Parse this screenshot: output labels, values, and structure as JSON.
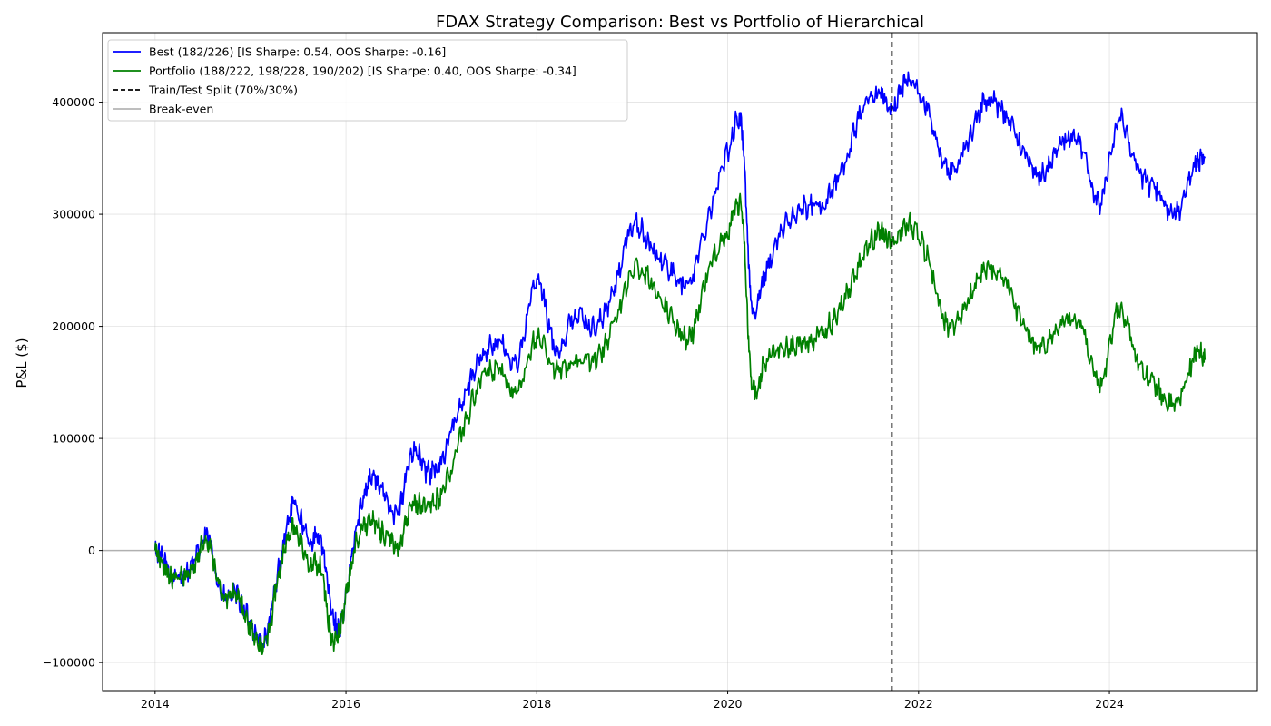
{
  "chart_data": {
    "type": "line",
    "title": "FDAX Strategy Comparison: Best vs Portfolio of Hierarchical",
    "xlabel": "",
    "ylabel": "P&L ($)",
    "xlim": [
      2013.45,
      2025.55
    ],
    "ylim": [
      -125000,
      462000
    ],
    "xticks": [
      2014,
      2016,
      2018,
      2020,
      2022,
      2024
    ],
    "yticks": [
      -100000,
      0,
      100000,
      200000,
      300000,
      400000
    ],
    "ytick_labels": [
      "−100000",
      "0",
      "100000",
      "200000",
      "300000",
      "400000"
    ],
    "grid": true,
    "legend_position": "top-left",
    "split_x": 2021.72,
    "breakeven_y": 0,
    "colors": {
      "best": "#0000ff",
      "portfolio": "#008000",
      "split": "#000000",
      "breakeven": "#a9a9a9"
    },
    "legend": [
      {
        "key": "best",
        "label": "Best (182/226) [IS Sharpe: 0.54, OOS Sharpe: -0.16]"
      },
      {
        "key": "portfolio",
        "label": "Portfolio (188/222, 198/228, 190/202) [IS Sharpe: 0.40, OOS Sharpe: -0.34]"
      },
      {
        "key": "split",
        "label": "Train/Test Split (70%/30%)"
      },
      {
        "key": "breakeven",
        "label": "Break-even"
      }
    ],
    "series": [
      {
        "key": "best",
        "name": "Best (182/226) [IS Sharpe: 0.54, OOS Sharpe: -0.16]",
        "points": [
          [
            2014.0,
            0
          ],
          [
            2014.1,
            -10000
          ],
          [
            2014.2,
            -25000
          ],
          [
            2014.4,
            -12000
          ],
          [
            2014.55,
            12000
          ],
          [
            2014.7,
            -40000
          ],
          [
            2014.85,
            -40000
          ],
          [
            2015.0,
            -65000
          ],
          [
            2015.15,
            -80000
          ],
          [
            2015.3,
            -15000
          ],
          [
            2015.45,
            40000
          ],
          [
            2015.6,
            10000
          ],
          [
            2015.75,
            5000
          ],
          [
            2015.85,
            -55000
          ],
          [
            2015.95,
            -65000
          ],
          [
            2016.1,
            15000
          ],
          [
            2016.25,
            65000
          ],
          [
            2016.4,
            50000
          ],
          [
            2016.55,
            35000
          ],
          [
            2016.7,
            90000
          ],
          [
            2016.85,
            70000
          ],
          [
            2017.0,
            80000
          ],
          [
            2017.2,
            130000
          ],
          [
            2017.4,
            170000
          ],
          [
            2017.6,
            185000
          ],
          [
            2017.8,
            170000
          ],
          [
            2018.0,
            240000
          ],
          [
            2018.2,
            180000
          ],
          [
            2018.4,
            210000
          ],
          [
            2018.6,
            200000
          ],
          [
            2018.8,
            230000
          ],
          [
            2019.0,
            290000
          ],
          [
            2019.2,
            270000
          ],
          [
            2019.4,
            250000
          ],
          [
            2019.6,
            240000
          ],
          [
            2019.8,
            300000
          ],
          [
            2020.0,
            355000
          ],
          [
            2020.15,
            375000
          ],
          [
            2020.25,
            220000
          ],
          [
            2020.4,
            250000
          ],
          [
            2020.6,
            290000
          ],
          [
            2020.8,
            305000
          ],
          [
            2021.0,
            310000
          ],
          [
            2021.2,
            340000
          ],
          [
            2021.4,
            390000
          ],
          [
            2021.6,
            405000
          ],
          [
            2021.72,
            395000
          ],
          [
            2021.9,
            420000
          ],
          [
            2022.1,
            390000
          ],
          [
            2022.3,
            340000
          ],
          [
            2022.5,
            360000
          ],
          [
            2022.7,
            400000
          ],
          [
            2022.9,
            390000
          ],
          [
            2023.1,
            355000
          ],
          [
            2023.3,
            335000
          ],
          [
            2023.5,
            365000
          ],
          [
            2023.7,
            360000
          ],
          [
            2023.9,
            310000
          ],
          [
            2024.1,
            385000
          ],
          [
            2024.3,
            340000
          ],
          [
            2024.5,
            320000
          ],
          [
            2024.7,
            300000
          ],
          [
            2024.9,
            345000
          ],
          [
            2025.0,
            350000
          ]
        ]
      },
      {
        "key": "portfolio",
        "name": "Portfolio (188/222, 198/228, 190/202) [IS Sharpe: 0.40, OOS Sharpe: -0.34]",
        "points": [
          [
            2014.0,
            0
          ],
          [
            2014.1,
            -15000
          ],
          [
            2014.2,
            -25000
          ],
          [
            2014.4,
            -15000
          ],
          [
            2014.55,
            10000
          ],
          [
            2014.7,
            -40000
          ],
          [
            2014.85,
            -40000
          ],
          [
            2015.0,
            -70000
          ],
          [
            2015.15,
            -85000
          ],
          [
            2015.3,
            -20000
          ],
          [
            2015.45,
            20000
          ],
          [
            2015.6,
            -10000
          ],
          [
            2015.75,
            -20000
          ],
          [
            2015.85,
            -80000
          ],
          [
            2015.95,
            -65000
          ],
          [
            2016.1,
            5000
          ],
          [
            2016.25,
            25000
          ],
          [
            2016.4,
            15000
          ],
          [
            2016.55,
            5000
          ],
          [
            2016.7,
            40000
          ],
          [
            2016.85,
            40000
          ],
          [
            2017.0,
            50000
          ],
          [
            2017.2,
            100000
          ],
          [
            2017.4,
            150000
          ],
          [
            2017.6,
            160000
          ],
          [
            2017.8,
            140000
          ],
          [
            2018.0,
            190000
          ],
          [
            2018.2,
            160000
          ],
          [
            2018.4,
            170000
          ],
          [
            2018.6,
            170000
          ],
          [
            2018.8,
            200000
          ],
          [
            2019.0,
            250000
          ],
          [
            2019.2,
            240000
          ],
          [
            2019.4,
            210000
          ],
          [
            2019.6,
            190000
          ],
          [
            2019.8,
            250000
          ],
          [
            2020.0,
            285000
          ],
          [
            2020.15,
            300000
          ],
          [
            2020.25,
            150000
          ],
          [
            2020.4,
            170000
          ],
          [
            2020.6,
            180000
          ],
          [
            2020.8,
            185000
          ],
          [
            2021.0,
            195000
          ],
          [
            2021.2,
            220000
          ],
          [
            2021.4,
            260000
          ],
          [
            2021.6,
            285000
          ],
          [
            2021.72,
            275000
          ],
          [
            2021.9,
            290000
          ],
          [
            2022.1,
            260000
          ],
          [
            2022.3,
            200000
          ],
          [
            2022.5,
            220000
          ],
          [
            2022.7,
            250000
          ],
          [
            2022.9,
            240000
          ],
          [
            2023.1,
            200000
          ],
          [
            2023.3,
            180000
          ],
          [
            2023.5,
            205000
          ],
          [
            2023.7,
            200000
          ],
          [
            2023.9,
            150000
          ],
          [
            2024.1,
            215000
          ],
          [
            2024.3,
            170000
          ],
          [
            2024.5,
            145000
          ],
          [
            2024.7,
            130000
          ],
          [
            2024.9,
            175000
          ],
          [
            2025.0,
            170000
          ]
        ]
      }
    ]
  }
}
